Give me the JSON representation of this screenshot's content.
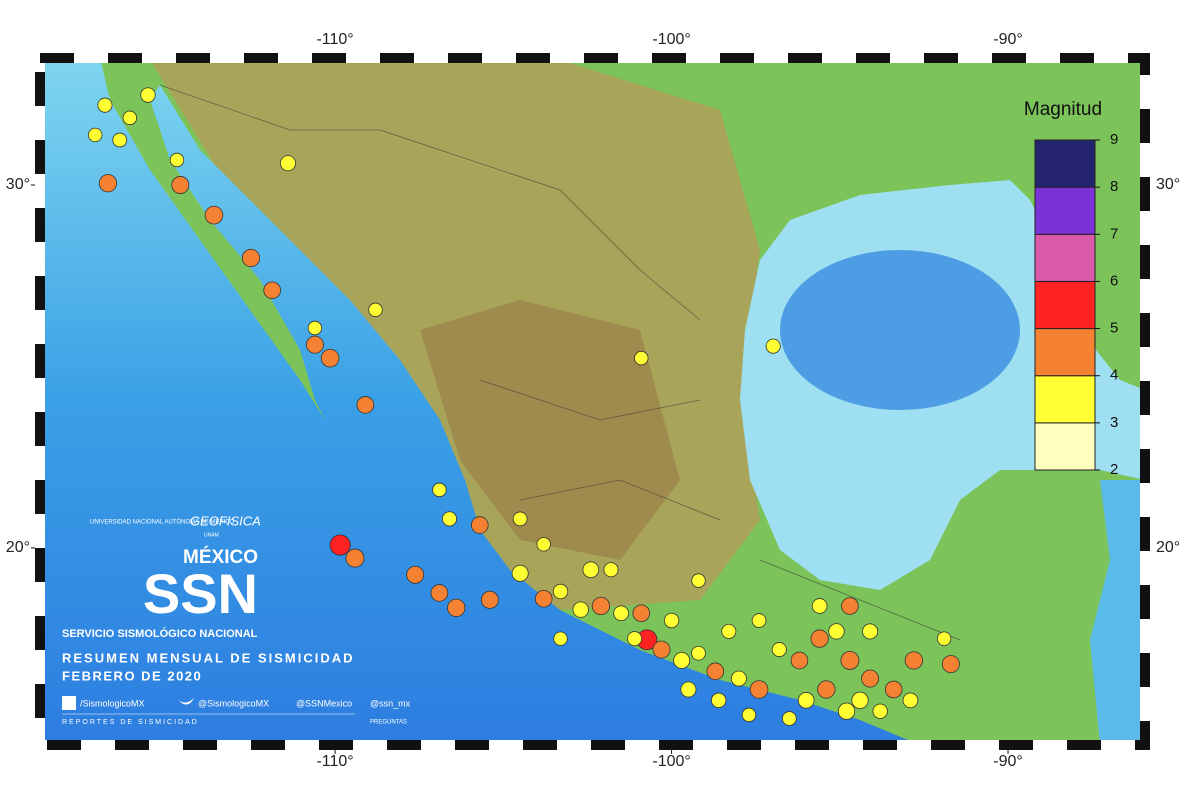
{
  "map": {
    "xlim": [
      -118.77,
      -85.93
    ],
    "ylim": [
      14.57,
      33.5
    ],
    "xticks": [
      {
        "value": -110,
        "label": "-110°"
      },
      {
        "value": -100,
        "label": "-100°"
      },
      {
        "value": -90,
        "label": "-90°"
      }
    ],
    "yticks": [
      {
        "value": 20,
        "label": "20°"
      },
      {
        "value": 30,
        "label": "30°"
      }
    ],
    "colorbar": {
      "title": "Magnitud",
      "ticks": [
        2,
        3,
        4,
        5,
        6,
        7,
        8,
        9
      ],
      "colors": [
        "#ffffc0",
        "#ffff33",
        "#f58232",
        "#ff2222",
        "#d85aa8",
        "#7a33d6",
        "#24246e"
      ]
    },
    "events": [
      {
        "lon": -109.85,
        "lat": 20.08,
        "mag": 5.1
      },
      {
        "lon": -100.73,
        "lat": 17.47,
        "mag": 5.0
      },
      {
        "lon": -109.41,
        "lat": 19.72,
        "mag": 4.4
      },
      {
        "lon": -116.75,
        "lat": 30.05,
        "mag": 4.2
      },
      {
        "lon": -114.6,
        "lat": 30.0,
        "mag": 4.1
      },
      {
        "lon": -113.6,
        "lat": 29.17,
        "mag": 4.3
      },
      {
        "lon": -112.5,
        "lat": 27.99,
        "mag": 4.2
      },
      {
        "lon": -111.87,
        "lat": 27.1,
        "mag": 4.0
      },
      {
        "lon": -110.6,
        "lat": 25.6,
        "mag": 4.1
      },
      {
        "lon": -110.15,
        "lat": 25.23,
        "mag": 4.3
      },
      {
        "lon": -109.1,
        "lat": 23.94,
        "mag": 4.0
      },
      {
        "lon": -107.62,
        "lat": 19.26,
        "mag": 4.1
      },
      {
        "lon": -106.9,
        "lat": 18.76,
        "mag": 4.0
      },
      {
        "lon": -106.4,
        "lat": 18.35,
        "mag": 4.2
      },
      {
        "lon": -105.4,
        "lat": 18.57,
        "mag": 4.1
      },
      {
        "lon": -105.7,
        "lat": 20.63,
        "mag": 4.0
      },
      {
        "lon": -116.84,
        "lat": 32.2,
        "mag": 3.2
      },
      {
        "lon": -116.1,
        "lat": 31.85,
        "mag": 3.0
      },
      {
        "lon": -115.56,
        "lat": 32.48,
        "mag": 3.3
      },
      {
        "lon": -116.4,
        "lat": 31.24,
        "mag": 3.1
      },
      {
        "lon": -117.13,
        "lat": 31.38,
        "mag": 3.0
      },
      {
        "lon": -114.7,
        "lat": 30.69,
        "mag": 3.0
      },
      {
        "lon": -111.4,
        "lat": 30.6,
        "mag": 3.5
      },
      {
        "lon": -108.8,
        "lat": 26.56,
        "mag": 3.0
      },
      {
        "lon": -100.9,
        "lat": 25.23,
        "mag": 3.0
      },
      {
        "lon": -96.98,
        "lat": 25.56,
        "mag": 3.2
      },
      {
        "lon": -110.6,
        "lat": 26.06,
        "mag": 3.0
      },
      {
        "lon": -104.5,
        "lat": 19.3,
        "mag": 3.8
      },
      {
        "lon": -102.4,
        "lat": 19.4,
        "mag": 3.7
      },
      {
        "lon": -103.8,
        "lat": 18.6,
        "mag": 4.0
      },
      {
        "lon": -103.3,
        "lat": 18.8,
        "mag": 3.3
      },
      {
        "lon": -102.7,
        "lat": 18.3,
        "mag": 3.6
      },
      {
        "lon": -102.1,
        "lat": 18.4,
        "mag": 4.2
      },
      {
        "lon": -101.5,
        "lat": 18.2,
        "mag": 3.4
      },
      {
        "lon": -101.1,
        "lat": 17.5,
        "mag": 3.2
      },
      {
        "lon": -100.3,
        "lat": 17.2,
        "mag": 4.1
      },
      {
        "lon": -99.7,
        "lat": 16.9,
        "mag": 3.8
      },
      {
        "lon": -99.2,
        "lat": 17.1,
        "mag": 3.1
      },
      {
        "lon": -98.7,
        "lat": 16.6,
        "mag": 4.0
      },
      {
        "lon": -98.0,
        "lat": 16.4,
        "mag": 3.5
      },
      {
        "lon": -97.4,
        "lat": 16.1,
        "mag": 4.3
      },
      {
        "lon": -96.8,
        "lat": 17.2,
        "mag": 3.2
      },
      {
        "lon": -96.2,
        "lat": 16.9,
        "mag": 4.0
      },
      {
        "lon": -95.6,
        "lat": 17.5,
        "mag": 4.2
      },
      {
        "lon": -95.1,
        "lat": 17.7,
        "mag": 3.6
      },
      {
        "lon": -94.7,
        "lat": 16.9,
        "mag": 4.4
      },
      {
        "lon": -94.4,
        "lat": 15.8,
        "mag": 3.9
      },
      {
        "lon": -94.1,
        "lat": 16.4,
        "mag": 4.1
      },
      {
        "lon": -93.8,
        "lat": 15.5,
        "mag": 3.3
      },
      {
        "lon": -93.4,
        "lat": 16.1,
        "mag": 4.0
      },
      {
        "lon": -92.9,
        "lat": 15.8,
        "mag": 3.4
      },
      {
        "lon": -94.8,
        "lat": 15.5,
        "mag": 3.9
      },
      {
        "lon": -95.4,
        "lat": 16.1,
        "mag": 4.2
      },
      {
        "lon": -96.0,
        "lat": 15.8,
        "mag": 3.7
      },
      {
        "lon": -96.5,
        "lat": 15.3,
        "mag": 3.1
      },
      {
        "lon": -97.7,
        "lat": 15.4,
        "mag": 3.0
      },
      {
        "lon": -98.6,
        "lat": 15.8,
        "mag": 3.3
      },
      {
        "lon": -99.5,
        "lat": 16.1,
        "mag": 3.5
      },
      {
        "lon": -103.3,
        "lat": 17.5,
        "mag": 3.0
      },
      {
        "lon": -101.8,
        "lat": 19.4,
        "mag": 3.2
      },
      {
        "lon": -99.2,
        "lat": 19.1,
        "mag": 3.0
      },
      {
        "lon": -97.4,
        "lat": 18.0,
        "mag": 3.1
      },
      {
        "lon": -95.6,
        "lat": 18.4,
        "mag": 3.4
      },
      {
        "lon": -94.7,
        "lat": 18.4,
        "mag": 4.0
      },
      {
        "lon": -92.8,
        "lat": 16.9,
        "mag": 4.2
      },
      {
        "lon": -91.7,
        "lat": 16.8,
        "mag": 4.1
      },
      {
        "lon": -91.9,
        "lat": 17.5,
        "mag": 3.0
      },
      {
        "lon": -94.1,
        "lat": 17.7,
        "mag": 3.5
      },
      {
        "lon": -100.9,
        "lat": 18.2,
        "mag": 4.0
      },
      {
        "lon": -100.0,
        "lat": 18.0,
        "mag": 3.3
      },
      {
        "lon": -98.3,
        "lat": 17.7,
        "mag": 3.2
      },
      {
        "lon": -103.8,
        "lat": 20.1,
        "mag": 3.0
      },
      {
        "lon": -104.5,
        "lat": 20.8,
        "mag": 3.1
      },
      {
        "lon": -106.6,
        "lat": 20.8,
        "mag": 3.2
      },
      {
        "lon": -106.9,
        "lat": 21.6,
        "mag": 3.0
      }
    ]
  },
  "branding": {
    "university": "UNIVERSIDAD NACIONAL AUTÓNOMA DE MÉXICO",
    "institute": "GEOFISICA",
    "unam": "UNAM",
    "country": "MÉXICO",
    "acronym": "SSN",
    "agency": "SERVICIO SISMOLÓGICO NACIONAL",
    "headline": "RESUMEN MENSUAL DE SISMICIDAD",
    "period": "FEBRERO DE 2020",
    "facebook": "/SismologicoMX",
    "twitter": "@SismologicoMX",
    "twitter2": "@SSNMexico",
    "contact": "@ssn_mx",
    "reports": "REPORTES DE SISMICIDAD",
    "questions": "PREGUNTAS"
  }
}
